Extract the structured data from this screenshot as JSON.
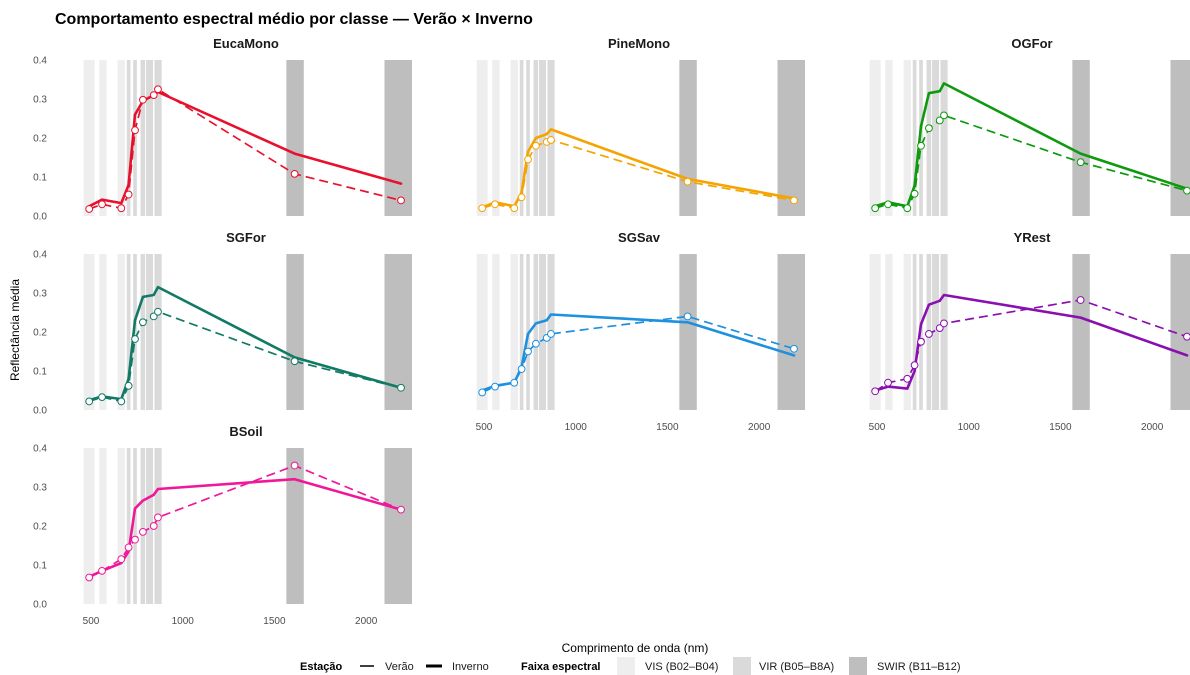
{
  "chart_data": {
    "type": "line",
    "title": "Comportamento espectral médio por classe — Verão × Inverno",
    "xlabel": "Comprimento de onda (nm)",
    "ylabel": "Reflectância média",
    "xlim": [
      440,
      2250
    ],
    "ylim": [
      0,
      0.4
    ],
    "x_ticks": [
      500,
      1000,
      1500,
      2000
    ],
    "x_tick_labels": [
      "500",
      "1000",
      "1500",
      "2000"
    ],
    "y_ticks": [
      0,
      0.1,
      0.2,
      0.3,
      0.4
    ],
    "y_tick_labels": [
      "0.0",
      "0.1",
      "0.2",
      "0.3",
      "0.4"
    ],
    "grid": false,
    "legend_position": "bottom",
    "wavelengths": [
      490,
      560,
      665,
      705,
      740,
      783,
      842,
      865,
      1610,
      2190
    ],
    "bands": [
      {
        "type": "VIS",
        "ranges": [
          [
            460,
            520
          ],
          [
            545,
            585
          ],
          [
            645,
            685
          ]
        ]
      },
      {
        "type": "VIR",
        "ranges": [
          [
            695,
            715
          ],
          [
            730,
            750
          ],
          [
            770,
            795
          ],
          [
            800,
            885
          ]
        ]
      },
      {
        "type": "SWIR",
        "ranges": [
          [
            1565,
            1660
          ],
          [
            2100,
            2280
          ]
        ]
      }
    ],
    "band_markers": [
      842
    ],
    "band_colors": {
      "VIS": "#eeeeee",
      "VIR": "#dadada",
      "SWIR": "#bebebe"
    },
    "legend": {
      "season_title": "Estação",
      "summer_label": "Verão",
      "winter_label": "Inverno",
      "band_title": "Faixa espectral",
      "vis_label": "VIS (B02–B04)",
      "vir_label": "VIR (B05–B8A)",
      "swir_label": "SWIR (B11–B12)"
    },
    "panels": [
      {
        "name": "EucaMono",
        "color": "#e8112d",
        "summer": [
          0.018,
          0.03,
          0.02,
          0.055,
          0.22,
          0.298,
          0.31,
          0.325,
          0.108,
          0.04
        ],
        "winter": [
          0.025,
          0.042,
          0.033,
          0.08,
          0.26,
          0.295,
          0.31,
          0.318,
          0.16,
          0.083
        ]
      },
      {
        "name": "PineMono",
        "color": "#f5a300",
        "summer": [
          0.02,
          0.03,
          0.02,
          0.048,
          0.145,
          0.18,
          0.19,
          0.195,
          0.088,
          0.04
        ],
        "winter": [
          0.022,
          0.035,
          0.025,
          0.06,
          0.165,
          0.2,
          0.21,
          0.222,
          0.095,
          0.045
        ]
      },
      {
        "name": "OGFor",
        "color": "#0e9a0e",
        "summer": [
          0.02,
          0.03,
          0.02,
          0.057,
          0.18,
          0.225,
          0.245,
          0.258,
          0.138,
          0.065
        ],
        "winter": [
          0.025,
          0.035,
          0.025,
          0.078,
          0.23,
          0.315,
          0.32,
          0.34,
          0.16,
          0.07
        ]
      },
      {
        "name": "SGFor",
        "color": "#117a65",
        "summer": [
          0.022,
          0.033,
          0.022,
          0.062,
          0.182,
          0.225,
          0.24,
          0.252,
          0.125,
          0.057
        ],
        "winter": [
          0.025,
          0.035,
          0.028,
          0.08,
          0.23,
          0.29,
          0.295,
          0.315,
          0.135,
          0.057
        ]
      },
      {
        "name": "SGSav",
        "color": "#1d90e0",
        "summer": [
          0.045,
          0.06,
          0.07,
          0.105,
          0.15,
          0.17,
          0.185,
          0.195,
          0.24,
          0.157
        ],
        "winter": [
          0.05,
          0.062,
          0.07,
          0.11,
          0.195,
          0.222,
          0.23,
          0.245,
          0.225,
          0.14
        ]
      },
      {
        "name": "YRest",
        "color": "#8a0fb0",
        "summer": [
          0.048,
          0.07,
          0.08,
          0.115,
          0.175,
          0.195,
          0.21,
          0.222,
          0.282,
          0.188
        ],
        "winter": [
          0.05,
          0.06,
          0.055,
          0.1,
          0.22,
          0.27,
          0.28,
          0.295,
          0.237,
          0.14
        ]
      },
      {
        "name": "BSoil",
        "color": "#f0189a",
        "summer": [
          0.068,
          0.085,
          0.115,
          0.145,
          0.165,
          0.185,
          0.2,
          0.222,
          0.355,
          0.242
        ],
        "winter": [
          0.07,
          0.085,
          0.105,
          0.135,
          0.245,
          0.265,
          0.28,
          0.295,
          0.32,
          0.242
        ]
      }
    ]
  }
}
